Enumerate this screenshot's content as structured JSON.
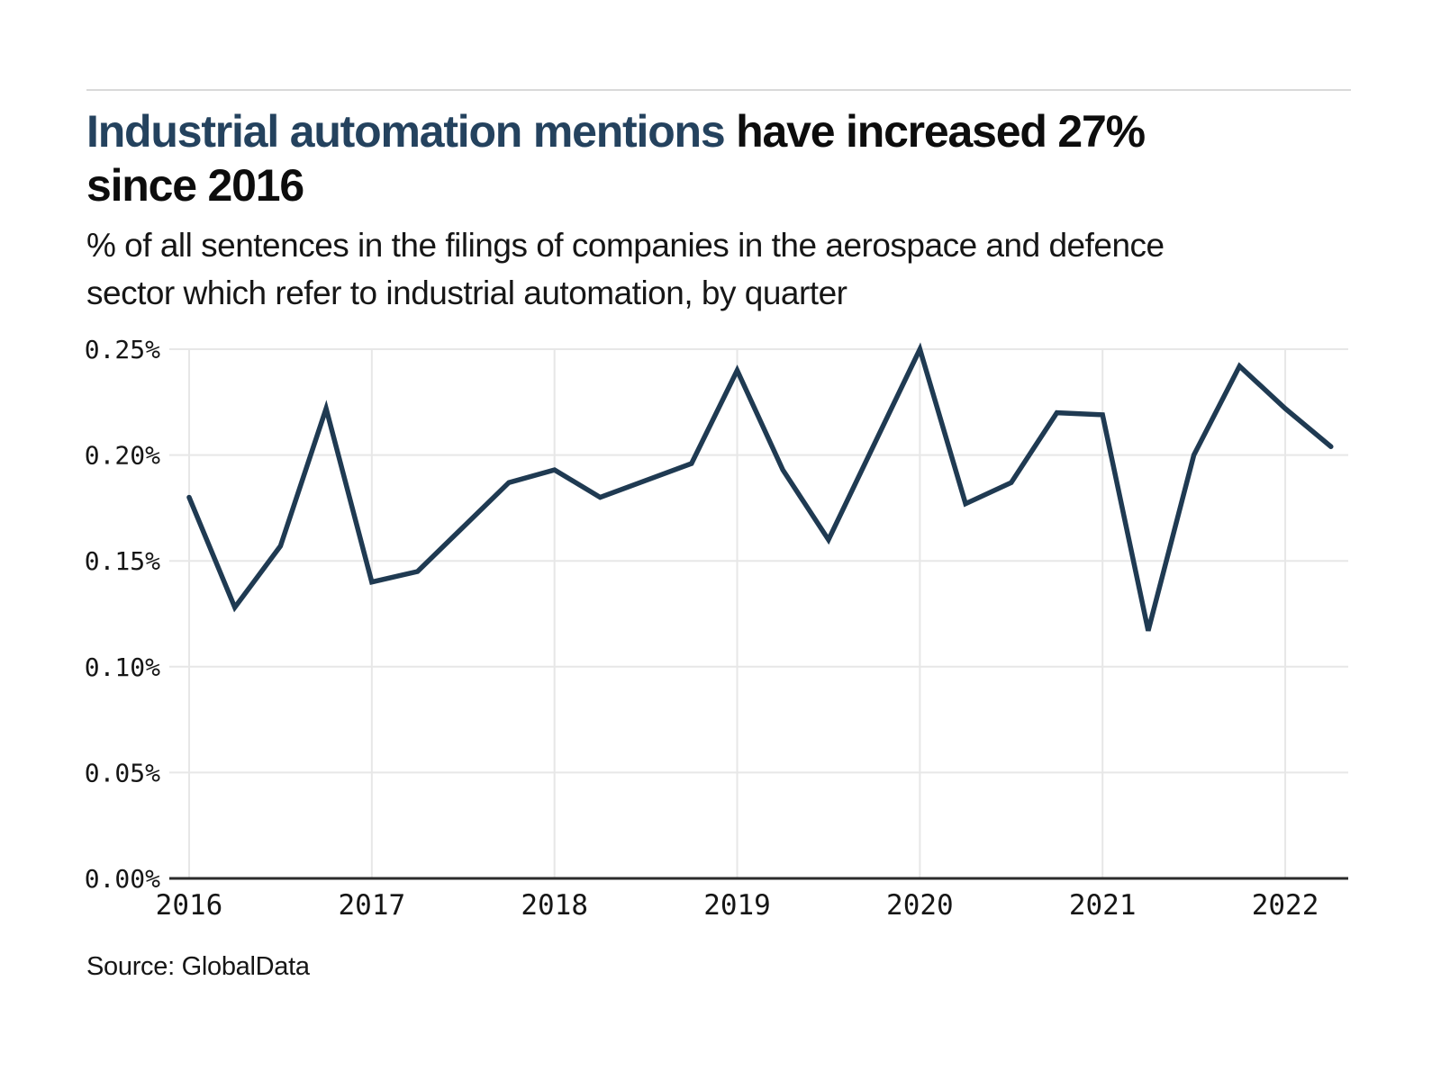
{
  "header": {
    "title_highlight": "Industrial automation mentions",
    "title_rest_line1": " have increased 27%",
    "title_line2": "since 2016",
    "subtitle_line1": "% of all sentences in the filings of companies in the aerospace and defence",
    "subtitle_line2": "sector which refer to industrial automation, by quarter"
  },
  "source_label": "Source: GlobalData",
  "colors": {
    "page_bg": "#ffffff",
    "accent_title": "#24425e",
    "text": "#161616",
    "line": "#1f3a52",
    "grid": "#e7e7e7",
    "axis": "#2b2b2b",
    "top_rule": "#d9d9d9"
  },
  "chart_data": {
    "type": "line",
    "unit": "%",
    "grid": true,
    "legend": false,
    "x_axis": {
      "interval": "quarter",
      "tick_labels": [
        "2016",
        "2017",
        "2018",
        "2019",
        "2020",
        "2021",
        "2022"
      ]
    },
    "y_axis": {
      "min": 0,
      "max": 0.25,
      "tick_labels": [
        "0.25%",
        "0.20%",
        "0.15%",
        "0.10%",
        "0.05%",
        "0.00%"
      ],
      "tick_values": [
        0.25,
        0.2,
        0.15,
        0.1,
        0.05,
        0
      ]
    },
    "series": [
      {
        "name": "% of sentences referring to industrial automation",
        "points": [
          {
            "quarter": "2016 Q1",
            "value": 0.18
          },
          {
            "quarter": "2016 Q2",
            "value": 0.128
          },
          {
            "quarter": "2016 Q3",
            "value": 0.157
          },
          {
            "quarter": "2016 Q4",
            "value": 0.222
          },
          {
            "quarter": "2017 Q1",
            "value": 0.14
          },
          {
            "quarter": "2017 Q2",
            "value": 0.145
          },
          {
            "quarter": "2017 Q3",
            "value": 0.166
          },
          {
            "quarter": "2017 Q4",
            "value": 0.187
          },
          {
            "quarter": "2018 Q1",
            "value": 0.193
          },
          {
            "quarter": "2018 Q2",
            "value": 0.18
          },
          {
            "quarter": "2018 Q3",
            "value": 0.188
          },
          {
            "quarter": "2018 Q4",
            "value": 0.196
          },
          {
            "quarter": "2019 Q1",
            "value": 0.24
          },
          {
            "quarter": "2019 Q2",
            "value": 0.193
          },
          {
            "quarter": "2019 Q3",
            "value": 0.16
          },
          {
            "quarter": "2019 Q4",
            "value": 0.205
          },
          {
            "quarter": "2020 Q1",
            "value": 0.25
          },
          {
            "quarter": "2020 Q2",
            "value": 0.177
          },
          {
            "quarter": "2020 Q3",
            "value": 0.187
          },
          {
            "quarter": "2020 Q4",
            "value": 0.22
          },
          {
            "quarter": "2021 Q1",
            "value": 0.219
          },
          {
            "quarter": "2021 Q2",
            "value": 0.117
          },
          {
            "quarter": "2021 Q3",
            "value": 0.2
          },
          {
            "quarter": "2021 Q4",
            "value": 0.242
          },
          {
            "quarter": "2022 Q1",
            "value": 0.222
          },
          {
            "quarter": "2022 Q2",
            "value": 0.204
          }
        ]
      }
    ]
  }
}
